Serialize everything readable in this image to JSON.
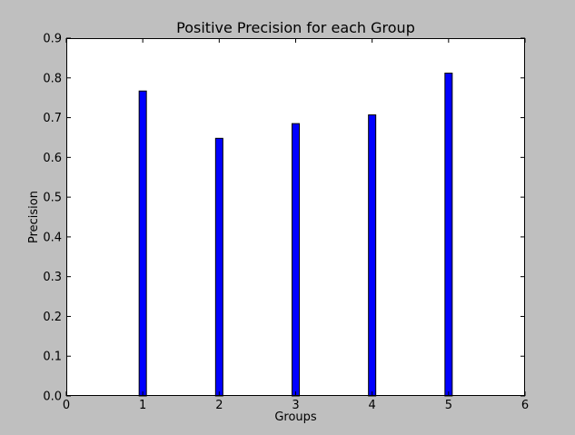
{
  "chart_data": {
    "type": "bar",
    "title": "Positive Precision for each Group",
    "xlabel": "Groups",
    "ylabel": "Precision",
    "categories": [
      1,
      2,
      3,
      4,
      5
    ],
    "values": [
      0.767,
      0.648,
      0.685,
      0.707,
      0.812
    ],
    "xlim": [
      0,
      6
    ],
    "ylim": [
      0,
      0.9
    ],
    "xticks": [
      "0",
      "1",
      "2",
      "3",
      "4",
      "5",
      "6"
    ],
    "yticks": [
      "0.0",
      "0.1",
      "0.2",
      "0.3",
      "0.4",
      "0.5",
      "0.6",
      "0.7",
      "0.8",
      "0.9"
    ],
    "bar_color": "#0000ff",
    "background_color": "#bfbfbf",
    "plot_background": "#ffffff",
    "grid": false,
    "legend": "none"
  }
}
